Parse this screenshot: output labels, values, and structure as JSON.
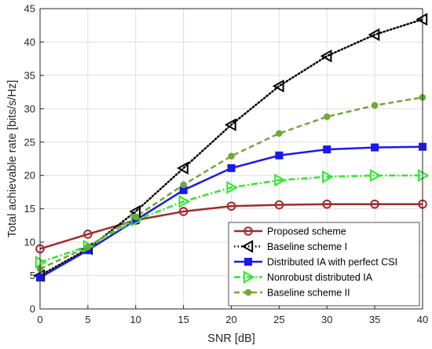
{
  "chart_data": {
    "type": "line",
    "title": "",
    "xlabel": "SNR [dB]",
    "ylabel": "Total achievable rate [bits/s/Hz]",
    "x": [
      0,
      5,
      10,
      15,
      20,
      25,
      30,
      35,
      40
    ],
    "xlim": [
      0,
      40
    ],
    "ylim": [
      0,
      45
    ],
    "xticks": [
      0,
      5,
      10,
      15,
      20,
      25,
      30,
      35,
      40
    ],
    "yticks": [
      0,
      5,
      10,
      15,
      20,
      25,
      30,
      35,
      40,
      45
    ],
    "grid": true,
    "legend_position": "bottom-right",
    "series": [
      {
        "name": "Proposed scheme",
        "values": [
          9.0,
          11.2,
          13.3,
          14.6,
          15.4,
          15.6,
          15.7,
          15.7,
          15.7
        ],
        "color": "#a22a2a",
        "dash": "solid",
        "marker": "circle-open"
      },
      {
        "name": "Baseline scheme I",
        "values": [
          5.0,
          9.0,
          14.6,
          21.1,
          27.6,
          33.4,
          37.9,
          41.1,
          43.4
        ],
        "color": "#000000",
        "dash": "dotted",
        "marker": "triangle-left-open"
      },
      {
        "name": "Distributed IA with perfect CSI",
        "values": [
          4.7,
          8.8,
          13.3,
          17.8,
          21.1,
          23.0,
          23.9,
          24.2,
          24.3
        ],
        "color": "#1a1aeb",
        "dash": "solid",
        "marker": "square"
      },
      {
        "name": "Nonrobust distributed IA",
        "values": [
          7.0,
          9.4,
          13.3,
          16.1,
          18.2,
          19.3,
          19.8,
          20.0,
          20.0
        ],
        "color": "#2ee82e",
        "dash": "dashdot",
        "marker": "triangle-right"
      },
      {
        "name": "Baseline scheme II",
        "values": [
          6.0,
          9.3,
          13.8,
          18.6,
          22.9,
          26.3,
          28.8,
          30.5,
          31.7
        ],
        "color": "#70a83a",
        "dash": "dashed",
        "marker": "circle-filled"
      }
    ]
  }
}
